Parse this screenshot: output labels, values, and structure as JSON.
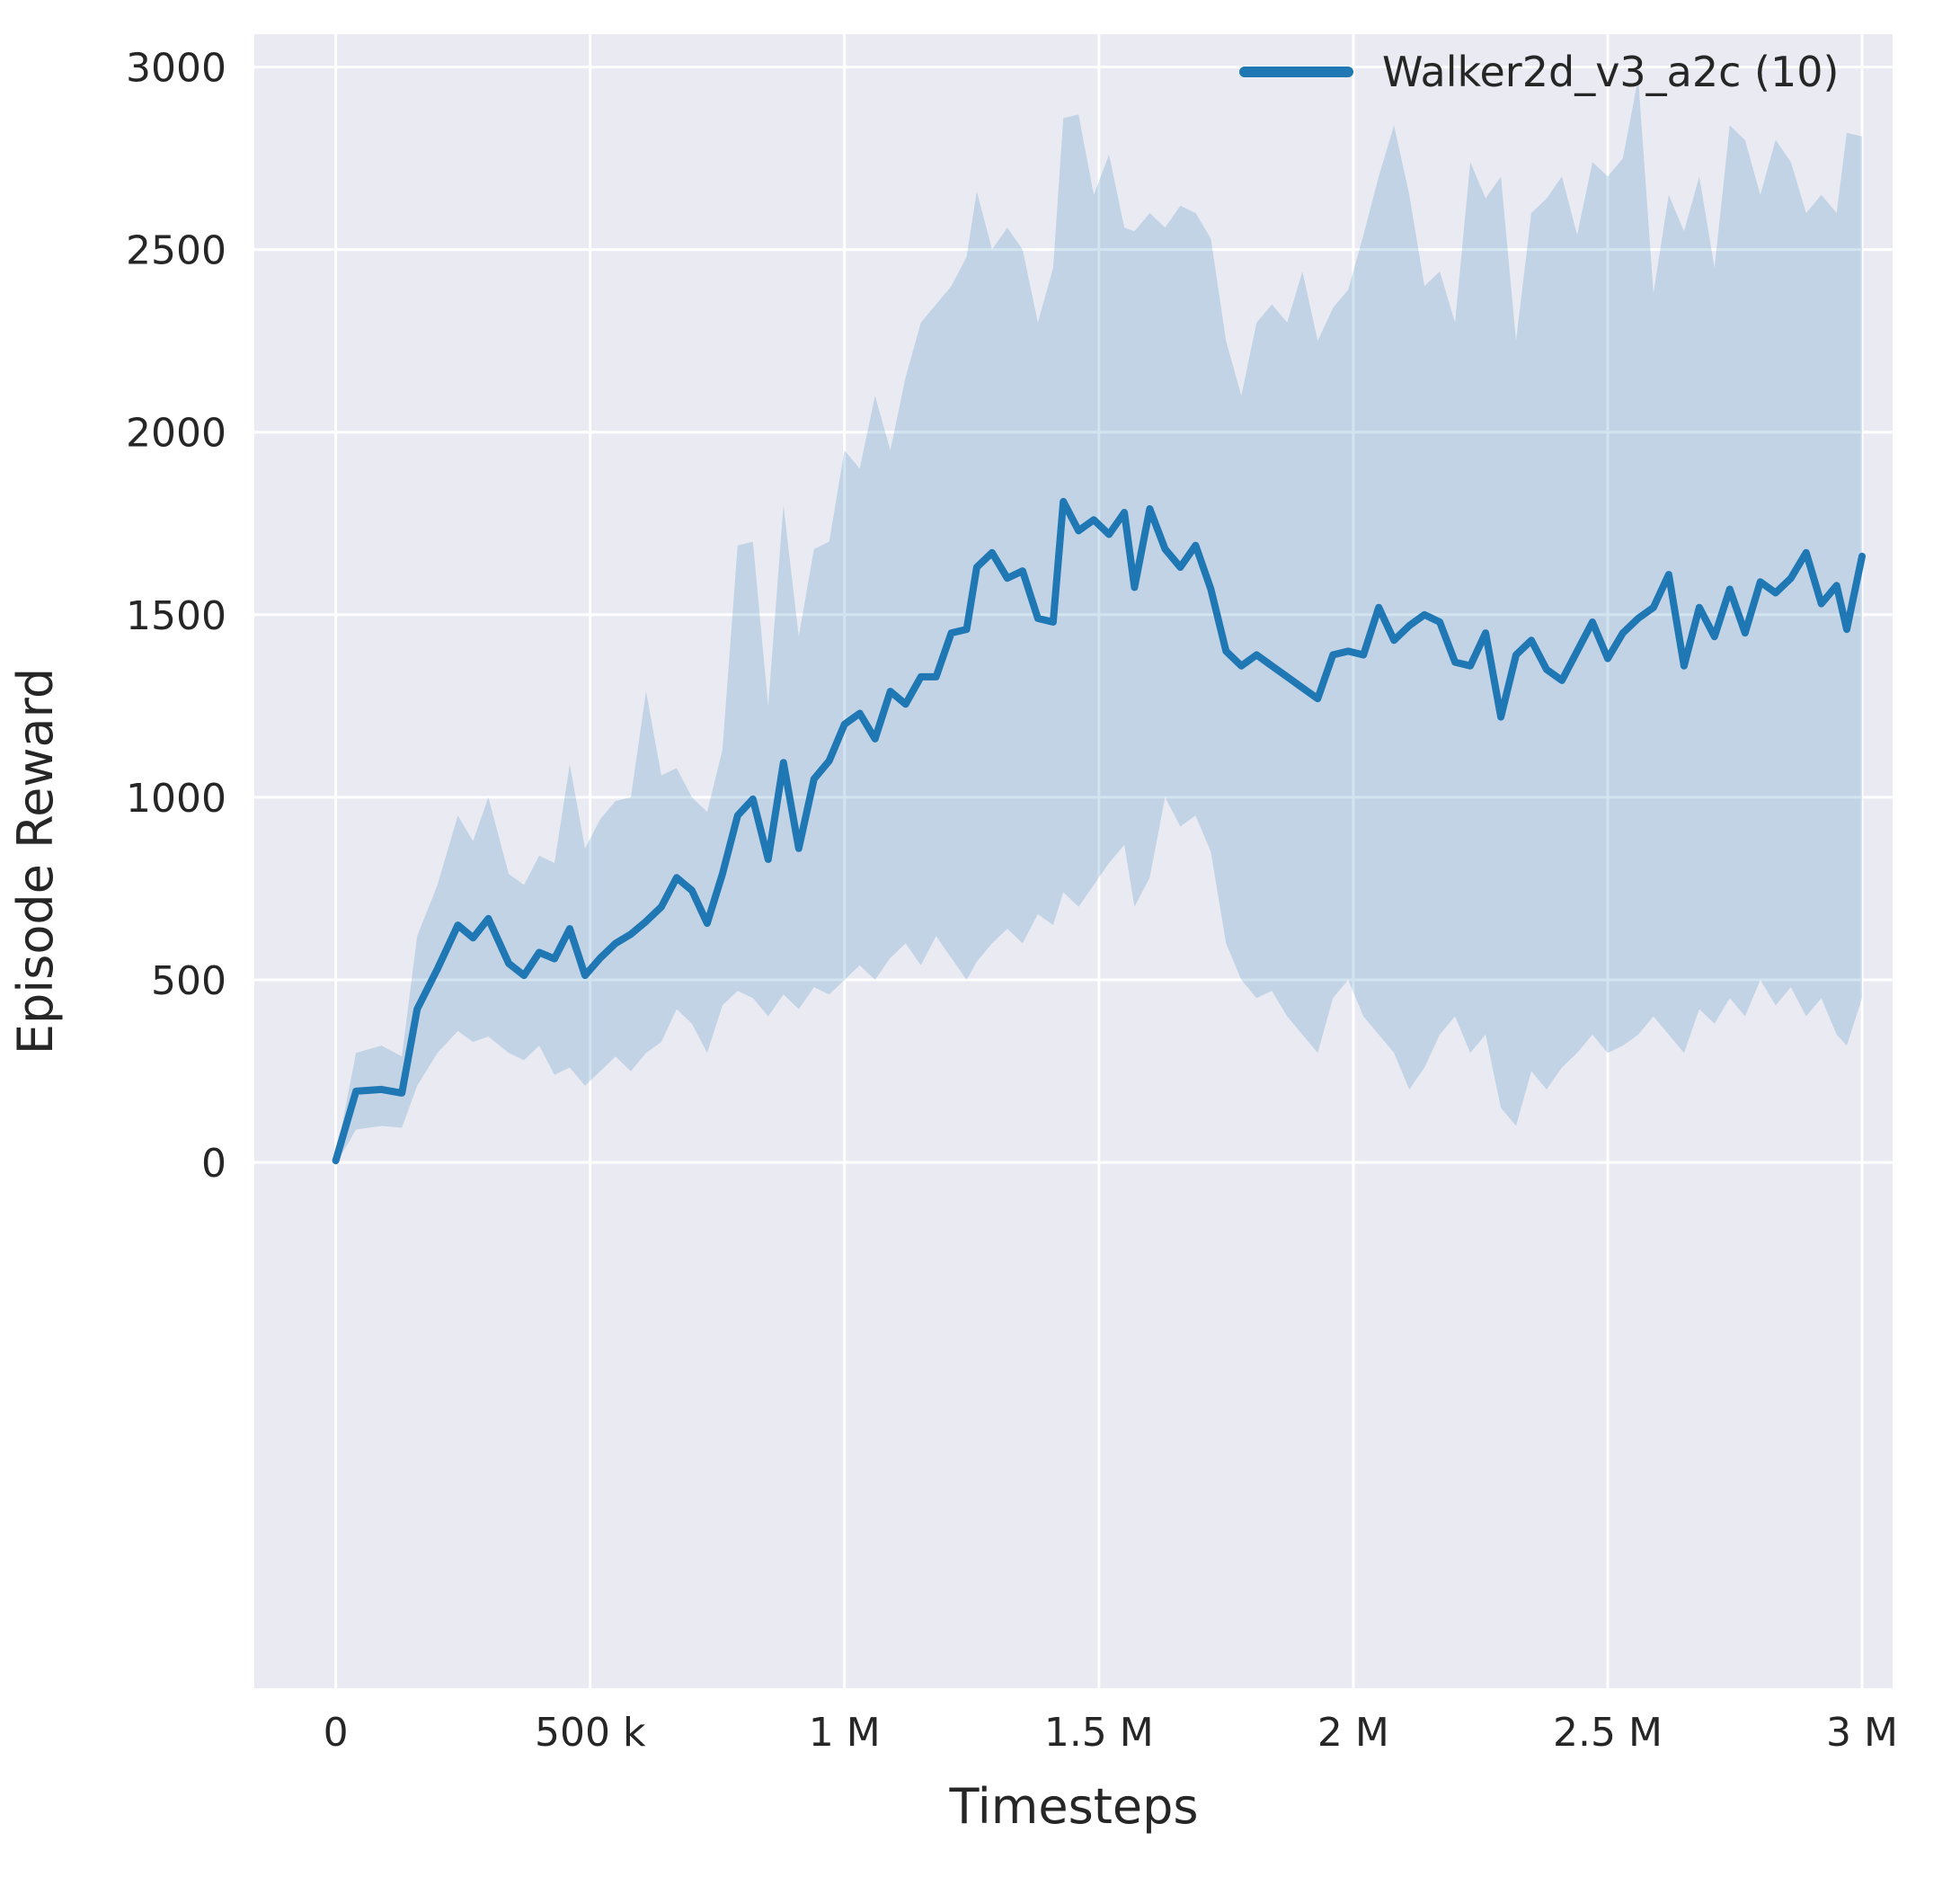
{
  "figure": {
    "background": "#ffffff",
    "axes_background": "#eaeaf2",
    "grid_color": "#ffffff",
    "text_color": "#262626"
  },
  "chart_data": {
    "type": "line",
    "title": "",
    "xlabel": "Timesteps",
    "ylabel": "Episode Reward",
    "grid": true,
    "legend_position": "upper right",
    "xlim": [
      -160000,
      3060000
    ],
    "ylim": [
      -1440,
      3090
    ],
    "x_ticks": [
      {
        "value": 0,
        "label": "0"
      },
      {
        "value": 500000,
        "label": "500 k"
      },
      {
        "value": 1000000,
        "label": "1 M"
      },
      {
        "value": 1500000,
        "label": "1.5 M"
      },
      {
        "value": 2000000,
        "label": "2 M"
      },
      {
        "value": 2500000,
        "label": "2.5 M"
      },
      {
        "value": 3000000,
        "label": "3 M"
      }
    ],
    "y_ticks": [
      {
        "value": 0,
        "label": "0"
      },
      {
        "value": 500,
        "label": "500"
      },
      {
        "value": 1000,
        "label": "1000"
      },
      {
        "value": 1500,
        "label": "1500"
      },
      {
        "value": 2000,
        "label": "2000"
      },
      {
        "value": 2500,
        "label": "2500"
      },
      {
        "value": 3000,
        "label": "3000"
      }
    ],
    "legend": [
      {
        "label": "Walker2d_v3_a2c (10)",
        "color": "#1f77b4"
      }
    ],
    "series": [
      {
        "name": "Walker2d_v3_a2c (10)",
        "color": "#1f77b4",
        "band_alpha": 0.2,
        "x": [
          0,
          40000,
          90000,
          130000,
          160000,
          200000,
          240000,
          270000,
          300000,
          340000,
          370000,
          400000,
          430000,
          460000,
          490000,
          520000,
          550000,
          580000,
          610000,
          640000,
          670000,
          700000,
          730000,
          760000,
          790000,
          820000,
          850000,
          880000,
          910000,
          940000,
          970000,
          1000000,
          1030000,
          1060000,
          1090000,
          1120000,
          1150000,
          1180000,
          1210000,
          1240000,
          1260000,
          1290000,
          1320000,
          1350000,
          1380000,
          1410000,
          1430000,
          1460000,
          1490000,
          1520000,
          1550000,
          1570000,
          1600000,
          1630000,
          1660000,
          1690000,
          1720000,
          1750000,
          1780000,
          1810000,
          1840000,
          1870000,
          1900000,
          1930000,
          1960000,
          1990000,
          2020000,
          2050000,
          2080000,
          2110000,
          2140000,
          2170000,
          2200000,
          2230000,
          2260000,
          2290000,
          2320000,
          2350000,
          2380000,
          2410000,
          2440000,
          2470000,
          2500000,
          2530000,
          2560000,
          2590000,
          2620000,
          2650000,
          2680000,
          2710000,
          2740000,
          2770000,
          2800000,
          2830000,
          2860000,
          2890000,
          2920000,
          2950000,
          2970000,
          3000000
        ],
        "mean": [
          5,
          195,
          200,
          190,
          420,
          530,
          650,
          615,
          668,
          545,
          512,
          575,
          558,
          640,
          512,
          560,
          600,
          625,
          660,
          700,
          780,
          745,
          655,
          790,
          950,
          995,
          830,
          1095,
          860,
          1050,
          1100,
          1200,
          1230,
          1160,
          1290,
          1255,
          1330,
          1330,
          1450,
          1460,
          1630,
          1670,
          1600,
          1620,
          1490,
          1480,
          1810,
          1730,
          1760,
          1720,
          1780,
          1575,
          1790,
          1680,
          1630,
          1690,
          1570,
          1400,
          1360,
          1390,
          1360,
          1330,
          1300,
          1270,
          1390,
          1400,
          1390,
          1520,
          1430,
          1470,
          1500,
          1480,
          1370,
          1360,
          1450,
          1220,
          1390,
          1430,
          1350,
          1320,
          1400,
          1480,
          1380,
          1450,
          1490,
          1520,
          1610,
          1360,
          1520,
          1440,
          1570,
          1450,
          1590,
          1560,
          1600,
          1670,
          1530,
          1580,
          1460,
          1660
        ],
        "lower": [
          -5,
          90,
          100,
          95,
          210,
          300,
          360,
          330,
          345,
          300,
          280,
          320,
          240,
          260,
          210,
          250,
          290,
          250,
          300,
          330,
          420,
          380,
          300,
          430,
          470,
          450,
          400,
          460,
          420,
          480,
          460,
          500,
          540,
          500,
          560,
          600,
          540,
          620,
          560,
          500,
          550,
          600,
          640,
          600,
          680,
          650,
          740,
          700,
          760,
          820,
          870,
          700,
          780,
          1000,
          920,
          950,
          850,
          600,
          500,
          450,
          470,
          400,
          350,
          300,
          450,
          500,
          400,
          350,
          300,
          200,
          260,
          350,
          400,
          300,
          350,
          150,
          100,
          250,
          200,
          260,
          300,
          350,
          300,
          320,
          350,
          400,
          350,
          300,
          420,
          380,
          450,
          400,
          500,
          430,
          480,
          400,
          450,
          350,
          320,
          450
        ],
        "upper": [
          15,
          300,
          320,
          290,
          620,
          760,
          950,
          880,
          1000,
          790,
          760,
          840,
          820,
          1090,
          860,
          940,
          990,
          1000,
          1290,
          1060,
          1080,
          1000,
          960,
          1130,
          1690,
          1700,
          1250,
          1800,
          1440,
          1680,
          1700,
          1950,
          1900,
          2100,
          1950,
          2150,
          2300,
          2350,
          2400,
          2480,
          2660,
          2500,
          2560,
          2500,
          2300,
          2450,
          2860,
          2870,
          2650,
          2760,
          2560,
          2550,
          2600,
          2560,
          2620,
          2600,
          2530,
          2250,
          2100,
          2300,
          2350,
          2300,
          2440,
          2250,
          2340,
          2390,
          2540,
          2700,
          2840,
          2650,
          2400,
          2440,
          2300,
          2740,
          2640,
          2700,
          2250,
          2600,
          2640,
          2700,
          2540,
          2740,
          2700,
          2750,
          2970,
          2380,
          2650,
          2550,
          2700,
          2450,
          2840,
          2800,
          2650,
          2800,
          2740,
          2600,
          2650,
          2600,
          2820,
          2810
        ]
      }
    ]
  }
}
